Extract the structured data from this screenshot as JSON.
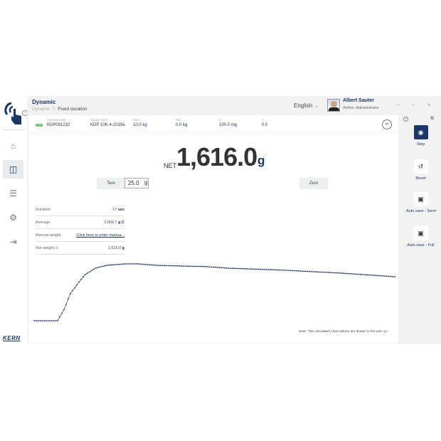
{
  "header": {
    "title": "Dynamic",
    "breadcrumb": [
      "Dynamic",
      "Fixed duration"
    ],
    "language": "English",
    "user_name": "Albert Sauter",
    "user_role": "Admin, Administrator"
  },
  "sidebar": {
    "items": [
      "home",
      "applications",
      "database",
      "settings",
      "logout"
    ],
    "active": "applications",
    "brand": "KERN"
  },
  "info_bar": [
    {
      "label": "Internal code",
      "value": "KDP001232",
      "unit": ""
    },
    {
      "label": "Model name",
      "value": "KDP 10K-4-2019a",
      "unit": ""
    },
    {
      "label": "Max",
      "value": "10.0",
      "unit": "kg"
    },
    {
      "label": "Min",
      "value": "0.0",
      "unit": "kg"
    },
    {
      "label": "d",
      "value": "100.0",
      "unit": "mg"
    },
    {
      "label": "e",
      "value": "0.0",
      "unit": ""
    }
  ],
  "display": {
    "prefix": "NET",
    "value": "1,616.0",
    "unit": "g"
  },
  "controls": {
    "tare_label": "Tare",
    "tare_value": "25.0",
    "tare_unit": "g",
    "zero_label": "Zero"
  },
  "results": [
    {
      "label": "Duration",
      "value": "17",
      "unit": "sec"
    },
    {
      "label": "Average",
      "value": "2,569.7",
      "unit": "g C"
    },
    {
      "label": "Manual weight",
      "link": "Click here to enter manua..."
    },
    {
      "label": "Net weight ⊙",
      "value": "1,616.0",
      "unit": "g"
    }
  ],
  "actions": [
    {
      "label": "Stop",
      "icon": "stop-icon"
    },
    {
      "label": "Reset",
      "icon": "reset-icon"
    },
    {
      "label": "Auto save - Semi",
      "icon": "save-icon"
    },
    {
      "label": "Auto save - Full",
      "icon": "save-icon"
    }
  ],
  "colors": {
    "accent": "#1e3566",
    "scale_icon": "#7dc67d"
  },
  "chart_data": {
    "type": "line",
    "note": "Note: The calculated chart values are shown in the unit: g c",
    "x": [
      0,
      1.1,
      1.4,
      1.7,
      2.1,
      2.4,
      2.9,
      3.4,
      4.3,
      4.9,
      5.8,
      8.1,
      9.1,
      11.8,
      14.5,
      17
    ],
    "y": [
      0,
      0,
      510,
      1280,
      1820,
      2190,
      2500,
      2630,
      2700,
      2700,
      2630,
      2570,
      2500,
      2400,
      2260,
      2090
    ],
    "xlim": [
      0,
      17
    ],
    "ylim": [
      0,
      2700
    ],
    "grid": false,
    "axes_visible": false
  }
}
